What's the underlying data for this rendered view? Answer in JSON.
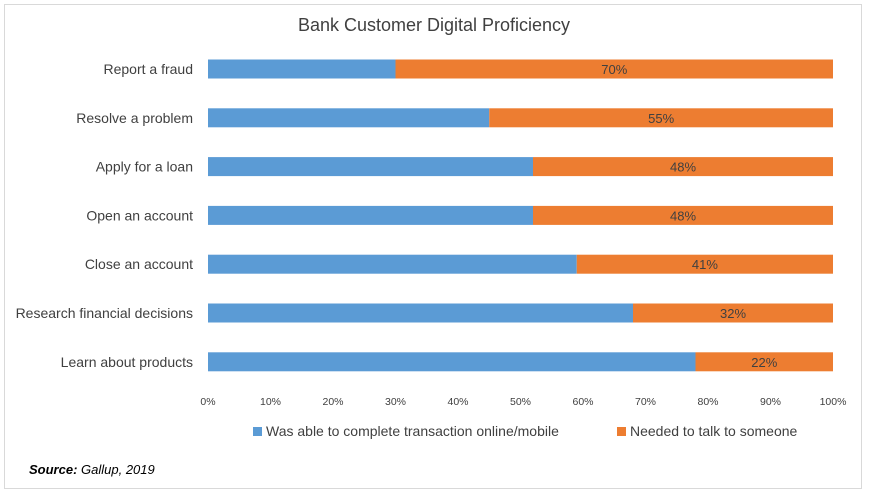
{
  "chart_data": {
    "type": "bar",
    "orientation": "horizontal",
    "stacked": true,
    "title": "Bank Customer Digital Proficiency",
    "categories": [
      "Report a fraud",
      "Resolve a problem",
      "Apply for a loan",
      "Open an account",
      "Close an account",
      "Research financial decisions",
      "Learn about products"
    ],
    "series": [
      {
        "name": "Was able to complete transaction online/mobile",
        "color": "#5b9bd5",
        "values": [
          30,
          45,
          52,
          52,
          59,
          68,
          78
        ]
      },
      {
        "name": "Needed to talk to someone",
        "color": "#ed7d31",
        "values": [
          70,
          55,
          48,
          48,
          41,
          32,
          22
        ]
      }
    ],
    "data_labels": [
      "70%",
      "55%",
      "48%",
      "48%",
      "41%",
      "32%",
      "22%"
    ],
    "x_ticks": [
      "0%",
      "10%",
      "20%",
      "30%",
      "40%",
      "50%",
      "60%",
      "70%",
      "80%",
      "90%",
      "100%"
    ],
    "xlim": [
      0,
      100
    ],
    "grid": false,
    "legend_position": "bottom"
  },
  "source": {
    "label": "Source:",
    "text": " Gallup, 2019"
  }
}
